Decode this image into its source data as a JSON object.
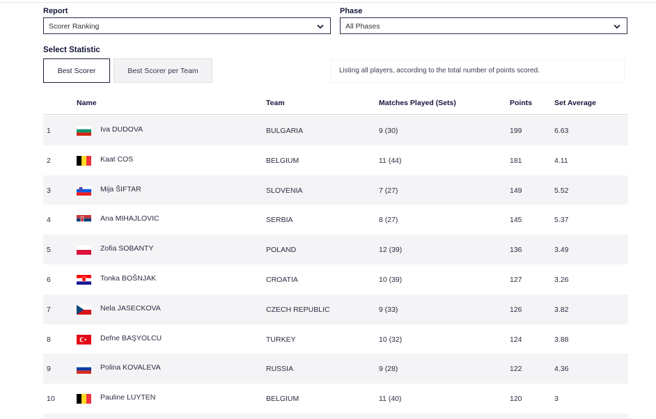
{
  "filters": {
    "report_label": "Report",
    "report_value": "Scorer Ranking",
    "phase_label": "Phase",
    "phase_value": "All Phases"
  },
  "statistic": {
    "label": "Select Statistic",
    "buttons": [
      {
        "label": "Best Scorer",
        "active": true
      },
      {
        "label": "Best Scorer per Team",
        "active": false
      }
    ],
    "description": "Listing all players, according to the total number of points scored."
  },
  "table": {
    "headers": {
      "name": "Name",
      "team": "Team",
      "matches": "Matches Played (Sets)",
      "points": "Points",
      "avg": "Set Average"
    },
    "rows": [
      {
        "rank": "1",
        "flag": "bulgaria",
        "name": "Iva DUDOVA",
        "team": "BULGARIA",
        "matches": "9 (30)",
        "points": "199",
        "avg": "6.63"
      },
      {
        "rank": "2",
        "flag": "belgium",
        "name": "Kaat COS",
        "team": "BELGIUM",
        "matches": "11 (44)",
        "points": "181",
        "avg": "4.11"
      },
      {
        "rank": "3",
        "flag": "slovenia",
        "name": "Mija ŠIFTAR",
        "team": "SLOVENIA",
        "matches": "7 (27)",
        "points": "149",
        "avg": "5.52"
      },
      {
        "rank": "4",
        "flag": "serbia",
        "name": "Ana MIHAJLOVIC",
        "team": "SERBIA",
        "matches": "8 (27)",
        "points": "145",
        "avg": "5.37"
      },
      {
        "rank": "5",
        "flag": "poland",
        "name": "Zofia SOBANTY",
        "team": "POLAND",
        "matches": "12 (39)",
        "points": "136",
        "avg": "3.49"
      },
      {
        "rank": "6",
        "flag": "croatia",
        "name": "Tonka BOŠNJAK",
        "team": "CROATIA",
        "matches": "10 (39)",
        "points": "127",
        "avg": "3.26"
      },
      {
        "rank": "7",
        "flag": "czech",
        "name": "Nela JASECKOVA",
        "team": "CZECH REPUBLIC",
        "matches": "9 (33)",
        "points": "126",
        "avg": "3.82"
      },
      {
        "rank": "8",
        "flag": "turkey",
        "name": "Defne BAŞYOLCU",
        "team": "TURKEY",
        "matches": "10 (32)",
        "points": "124",
        "avg": "3.88"
      },
      {
        "rank": "9",
        "flag": "russia",
        "name": "Polina KOVALEVA",
        "team": "RUSSIA",
        "matches": "9 (28)",
        "points": "122",
        "avg": "4.36"
      },
      {
        "rank": "10",
        "flag": "belgium",
        "name": "Pauline LUYTEN",
        "team": "BELGIUM",
        "matches": "11 (40)",
        "points": "120",
        "avg": "3"
      }
    ]
  }
}
